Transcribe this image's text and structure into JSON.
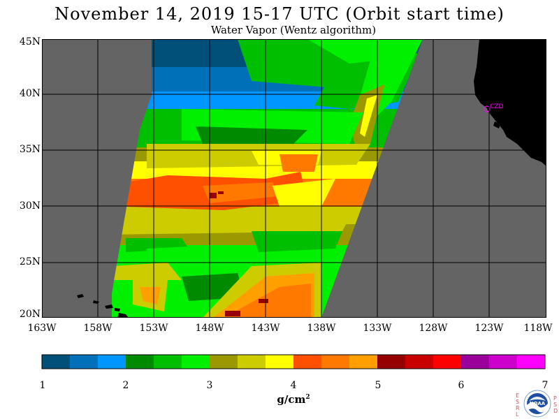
{
  "title": "November 14, 2019  15-17 UTC  (Orbit start time)",
  "subtitle": "Water Vapor (Wentz algorithm)",
  "map": {
    "lat_labels": [
      "45N",
      "40N",
      "35N",
      "30N",
      "25N",
      "20N"
    ],
    "lon_labels": [
      "163W",
      "158W",
      "153W",
      "148W",
      "143W",
      "138W",
      "133W",
      "128W",
      "123W",
      "118W"
    ],
    "station_label": "CZD",
    "station_color": "#ff00ff",
    "land_color": "#000000",
    "no_data_color": "#646464"
  },
  "colorbar": {
    "labels": [
      "1",
      "2",
      "3",
      "4",
      "5",
      "6",
      "7"
    ],
    "units": "g/cm",
    "units_exp": "2",
    "colors": [
      "#00507a",
      "#0070b8",
      "#0096ff",
      "#008a00",
      "#00be00",
      "#00f000",
      "#9a9a00",
      "#cccc00",
      "#ffff00",
      "#ff5000",
      "#ff7800",
      "#ffa000",
      "#960000",
      "#c80000",
      "#ff0000",
      "#9a009a",
      "#cc00cc",
      "#ff00ff"
    ]
  },
  "logo": {
    "left_letters": [
      "E",
      "S",
      "R",
      "L"
    ],
    "right_letters": [
      "P",
      "S",
      "D"
    ],
    "name": "NOAA"
  }
}
